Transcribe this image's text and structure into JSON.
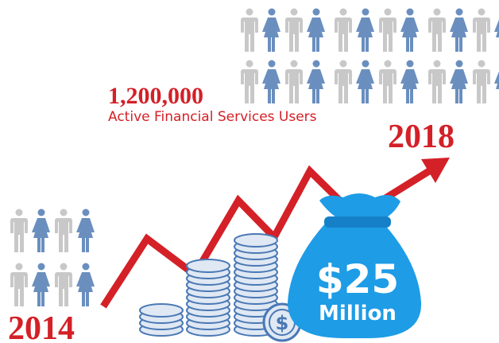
{
  "headline": {
    "number": "1,200,000",
    "caption": "Active Financial Services Users"
  },
  "years": {
    "end": "2018",
    "start": "2014"
  },
  "bag": {
    "amount": "$25",
    "unit": "Million"
  }
}
